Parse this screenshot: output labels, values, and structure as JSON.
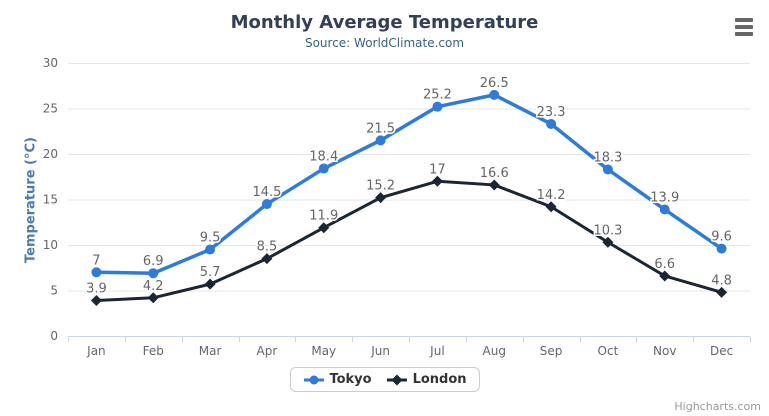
{
  "header": {
    "title": "Monthly Average Temperature",
    "subtitle": "Source: WorldClimate.com"
  },
  "export_menu": {
    "icon": "hamburger-menu-icon"
  },
  "credit": {
    "label": "Highcharts.com"
  },
  "chart_data": {
    "type": "line",
    "title": "Monthly Average Temperature",
    "subtitle": "Source: WorldClimate.com",
    "categories": [
      "Jan",
      "Feb",
      "Mar",
      "Apr",
      "May",
      "Jun",
      "Jul",
      "Aug",
      "Sep",
      "Oct",
      "Nov",
      "Dec"
    ],
    "series": [
      {
        "name": "Tokyo",
        "color": "#2f7bd9",
        "marker": "circle",
        "line_width": 3.5,
        "values": [
          7,
          6.9,
          9.5,
          14.5,
          18.4,
          21.5,
          25.2,
          26.5,
          23.3,
          18.3,
          13.9,
          9.6
        ]
      },
      {
        "name": "London",
        "color": "#1a2633",
        "marker": "diamond",
        "line_width": 3,
        "values": [
          3.9,
          4.2,
          5.7,
          8.5,
          11.9,
          15.2,
          17,
          16.6,
          14.2,
          10.3,
          6.6,
          4.8
        ]
      }
    ],
    "xlabel": "",
    "ylabel": "Temperature (°C)",
    "ylim": [
      0,
      30
    ],
    "ytick_interval": 5,
    "grid": "horizontal",
    "legend_position": "bottom-center",
    "data_labels": true
  },
  "styles": {
    "title_color": "#323f57",
    "subtitle_color": "#35618e",
    "ylabel_color": "#4d7ab0",
    "grid_color": "#e6e6e6",
    "axis_line_color": "#ccd6eb",
    "axis_label_color": "#666666",
    "data_label_color": "#666666",
    "legend_text_color": "#333333",
    "legend_border_color": "#cccccc",
    "credit_color": "#999999",
    "menu_icon_color": "#666666"
  }
}
